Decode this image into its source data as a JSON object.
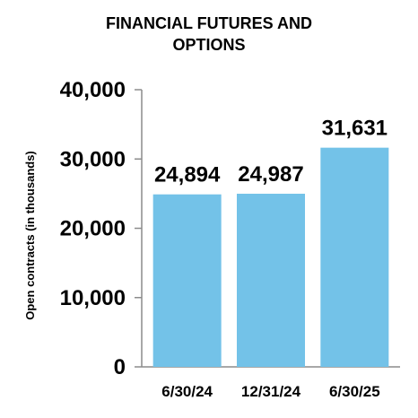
{
  "chart_data": {
    "type": "bar",
    "title_lines": [
      "FINANCIAL FUTURES AND",
      "OPTIONS"
    ],
    "ylabel": "Open contracts (in thousands)",
    "xlabel": "",
    "categories": [
      "6/30/24",
      "12/31/24",
      "6/30/25"
    ],
    "values": [
      24894,
      24987,
      31631
    ],
    "data_labels": [
      "24,894",
      "24,987",
      "31,631"
    ],
    "ylim": [
      0,
      40000
    ],
    "yticks": [
      0,
      10000,
      20000,
      30000,
      40000
    ],
    "ytick_labels": [
      "0",
      "10,000",
      "20,000",
      "30,000",
      "40,000"
    ],
    "bar_color": "#73c2e8",
    "axis_color": "#8c8c8c",
    "grid": false,
    "legend": "none"
  }
}
